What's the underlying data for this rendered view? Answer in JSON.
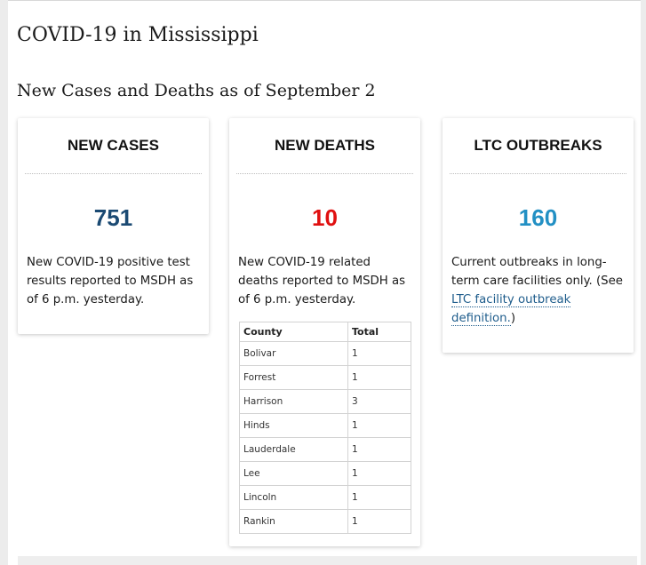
{
  "page": {
    "title": "COVID-19 in Mississippi",
    "subtitle": "New Cases and Deaths as of September 2"
  },
  "cards": {
    "cases": {
      "heading": "NEW CASES",
      "value": "751",
      "description": "New COVID-19 positive test results reported to MSDH as of 6 p.m. yesterday."
    },
    "deaths": {
      "heading": "NEW DEATHS",
      "value": "10",
      "description": "New COVID-19 related deaths reported to MSDH as of 6 p.m. yesterday.",
      "table": {
        "headers": {
          "county": "County",
          "total": "Total"
        },
        "rows": [
          {
            "county": "Bolivar",
            "total": "1"
          },
          {
            "county": "Forrest",
            "total": "1"
          },
          {
            "county": "Harrison",
            "total": "3"
          },
          {
            "county": "Hinds",
            "total": "1"
          },
          {
            "county": "Lauderdale",
            "total": "1"
          },
          {
            "county": "Lee",
            "total": "1"
          },
          {
            "county": "Lincoln",
            "total": "1"
          },
          {
            "county": "Rankin",
            "total": "1"
          }
        ]
      }
    },
    "ltc": {
      "heading": "LTC OUTBREAKS",
      "value": "160",
      "description_before": "Current outbreaks in long-term care facilities only. (See ",
      "link_text": "LTC facility outbreak definition.",
      "description_after": ")"
    }
  },
  "colors": {
    "cases_value": "#1b4a73",
    "deaths_value": "#e01010",
    "ltc_value": "#2290c4",
    "link": "#1f5d8c"
  }
}
